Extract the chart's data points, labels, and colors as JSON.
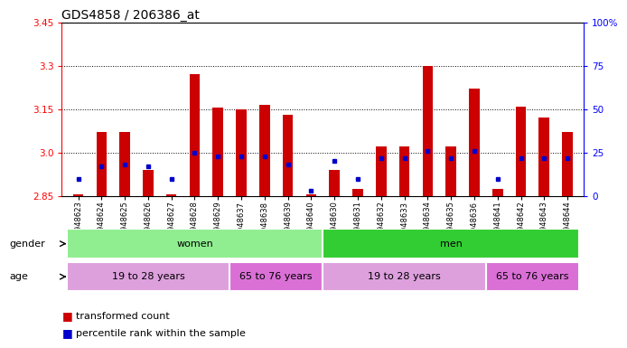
{
  "title": "GDS4858 / 206386_at",
  "samples": [
    "GSM948623",
    "GSM948624",
    "GSM948625",
    "GSM948626",
    "GSM948627",
    "GSM948628",
    "GSM948629",
    "GSM948637",
    "GSM948638",
    "GSM948639",
    "GSM948640",
    "GSM948630",
    "GSM948631",
    "GSM948632",
    "GSM948633",
    "GSM948634",
    "GSM948635",
    "GSM948636",
    "GSM948641",
    "GSM948642",
    "GSM948643",
    "GSM948644"
  ],
  "red_values": [
    2.856,
    3.07,
    3.07,
    2.94,
    2.856,
    3.27,
    3.155,
    3.15,
    3.165,
    3.13,
    2.856,
    2.94,
    2.875,
    3.02,
    3.02,
    3.3,
    3.02,
    3.22,
    2.875,
    3.16,
    3.12,
    3.07
  ],
  "blue_values": [
    10,
    17,
    18,
    17,
    10,
    25,
    23,
    23,
    23,
    18,
    3,
    20,
    10,
    22,
    22,
    26,
    22,
    26,
    10,
    22,
    22,
    22
  ],
  "y_min": 2.85,
  "y_max": 3.45,
  "y_ticks": [
    2.85,
    3.0,
    3.15,
    3.3,
    3.45
  ],
  "y2_ticks": [
    0,
    25,
    50,
    75,
    100
  ],
  "grid_lines": [
    3.0,
    3.15,
    3.3
  ],
  "gender_groups": [
    {
      "label": "women",
      "start": 0,
      "end": 11,
      "color": "#90EE90"
    },
    {
      "label": "men",
      "start": 11,
      "end": 22,
      "color": "#32CD32"
    }
  ],
  "age_groups": [
    {
      "label": "19 to 28 years",
      "start": 0,
      "end": 7,
      "color": "#DDA0DD"
    },
    {
      "label": "65 to 76 years",
      "start": 7,
      "end": 11,
      "color": "#DA70D6"
    },
    {
      "label": "19 to 28 years",
      "start": 11,
      "end": 18,
      "color": "#DDA0DD"
    },
    {
      "label": "65 to 76 years",
      "start": 18,
      "end": 22,
      "color": "#DA70D6"
    }
  ],
  "bar_color": "#CC0000",
  "dot_color": "#0000CC",
  "bg_color": "#FFFFFF",
  "legend_items": [
    {
      "color": "#CC0000",
      "label": "transformed count"
    },
    {
      "color": "#0000CC",
      "label": "percentile rank within the sample"
    }
  ]
}
